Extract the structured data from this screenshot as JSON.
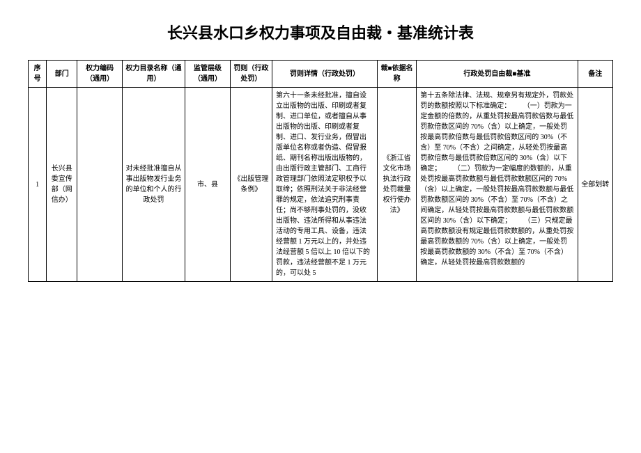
{
  "title": "长兴县水口乡权力事项及自由裁・基准统计表",
  "columns": [
    "序号",
    "部门",
    "权力编码（通用）",
    "权力目录名称（通用）",
    "监管层级（通用）",
    "罚则（行政处罚）",
    "罚则详情（行政处罚）",
    "裁■依据名称",
    "行政处罚自由裁■基准",
    "备注"
  ],
  "row": {
    "seq": "1",
    "dept": "长兴县委宣传部（网信办）",
    "code": "",
    "name": "对未经批准擅自从事出版物发行业务的单位和个人的行政处罚",
    "level": "市、县",
    "rule": "《出版管理条例》",
    "detail": "第六十一条未经批准，擅自设立出版物的出版、印刷或者复制、进口单位，或者擅自从事出版物的出版、印刷或者复制、进口、发行业务，假冒出版单位名称或者伪造、假冒报纸、期刊名称出版出版物的，由出版行政主管部门、工商行政管理部门依照法定职权予以取缔；依照刑法关于非法经营罪的规定，依法追究刑事责任；尚不够刑事处罚的，没收出版物、违法所得和从事违法活动的专用工具、设备，违法经营额 1 万元以上的，并处违法经营额 5 倍以上 10 倍以下的罚款，违法经营额不足 1 万元的，可以处 5",
    "basis": "《浙江省文化市场执法行政处罚裁量权行使办法》",
    "standard": "第十五条除法律、法规、规章另有规定外，罚款处罚的数额按照以下标准确定：\n　　（一）罚款为一定金额的倍数的，从重处罚按最高罚款倍数与最低罚款倍数区间的 70%（含）以上确定，一般处罚按最高罚款倍数与最低罚款倍数区间的 30%（不含）至 70%（不含）之间确定，从轻处罚按最高罚款倍数与最低罚款倍数区间的 30%（含）以下确定；\n　　（二）罚款为一定幅度的数额的，从重处罚按最高罚款数额与最低罚款数额区间的 70%（含）以上确定，一般处罚按最高罚款数额与最低罚款数额区间的 30%（不含）至 70%（不含）之间确定，从轻处罚按最高罚款数额与最低罚款数额区间的 30%（含）以下确定；\n　　（三）只规定最高罚款数额没有规定最低罚款数额的，从重处罚按最高罚款数额的 70%（含）以上确定，一般处罚按最高罚款数额的 30%（不含）至 70%（不含）确定，从轻处罚按最高罚款数额的",
    "remark": "全部划转"
  }
}
